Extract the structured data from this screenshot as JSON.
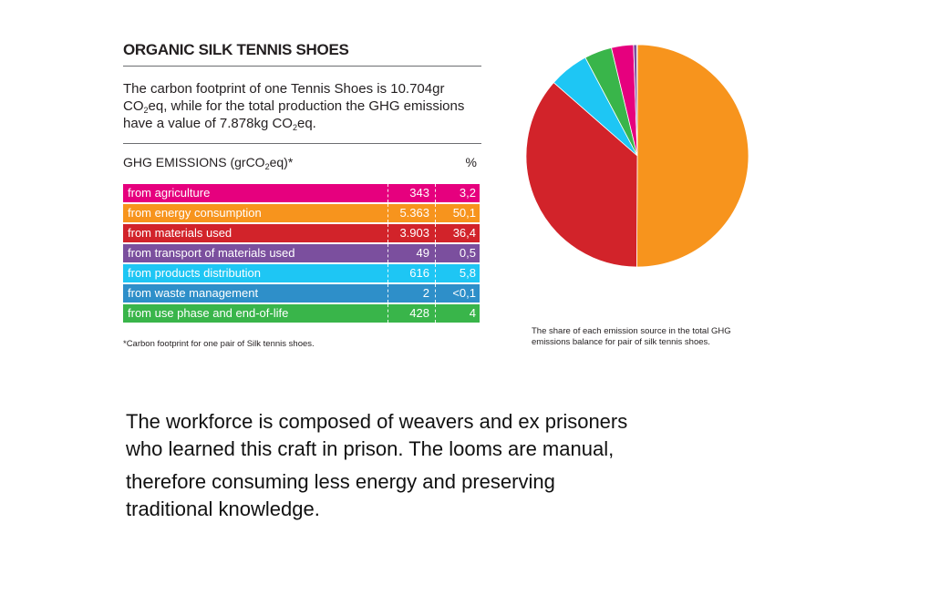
{
  "title": "ORGANIC SILK TENNIS SHOES",
  "intro": {
    "part1": "The carbon footprint of one Tennis Shoes is 10.704gr CO",
    "sub1": "2",
    "part2": "eq, while for the total production the GHG emissions have a value of 7.878kg CO",
    "sub2": "2",
    "part3": "eq."
  },
  "table_header": {
    "label_part1": "GHG EMISSIONS (grCO",
    "label_sub": "2",
    "label_part2": "eq)*",
    "pct_label": "%"
  },
  "footnote": "*Carbon footprint for one pair of Silk tennis shoes.",
  "pie_caption": "The share of each emission source in the total GHG emissions balance for pair of silk tennis shoes.",
  "body_text": {
    "p1": " The workforce is composed of weavers and ex prisoners who learned this craft in prison. The looms are manual,",
    "p2": "therefore consuming less energy and preserving traditional knowledge."
  },
  "chart_data": {
    "type": "pie",
    "title": "",
    "rows": [
      {
        "label": "from agriculture",
        "value": "343",
        "percent": "3,2",
        "pie_value": 3.2,
        "color": "#e6007e"
      },
      {
        "label": "from energy consumption",
        "value": "5.363",
        "percent": "50,1",
        "pie_value": 50.1,
        "color": "#f7941d"
      },
      {
        "label": "from materials used",
        "value": "3.903",
        "percent": "36,4",
        "pie_value": 36.4,
        "color": "#d2232a"
      },
      {
        "label": "from transport of materials used",
        "value": "49",
        "percent": "0,5",
        "pie_value": 0.5,
        "color": "#7b4f9e"
      },
      {
        "label": "from products distribution",
        "value": "616",
        "percent": "5,8",
        "pie_value": 5.8,
        "color": "#1ec6f4"
      },
      {
        "label": "from waste management",
        "value": "2",
        "percent": "<0,1",
        "pie_value": 0.05,
        "color": "#2e8fc9"
      },
      {
        "label": "from use phase and end-of-life",
        "value": "428",
        "percent": "4",
        "pie_value": 4.0,
        "color": "#39b54a"
      }
    ],
    "pie_order": [
      1,
      2,
      4,
      6,
      0,
      3,
      5
    ],
    "pie_start": "12 o'clock",
    "pie_direction": "clockwise"
  }
}
